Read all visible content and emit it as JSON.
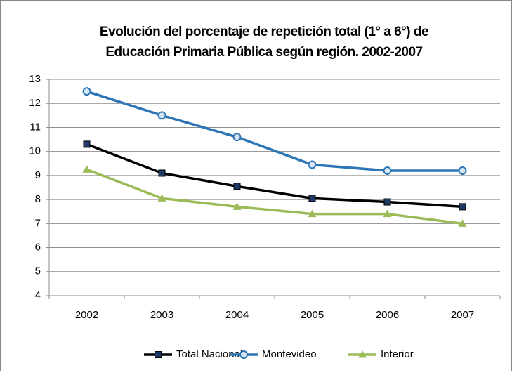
{
  "chart_data": {
    "type": "line",
    "title": [
      "Evolución del porcentaje de repetición total (1° a 6°) de",
      "Educación Primaria Pública según región. 2002-2007"
    ],
    "categories": [
      "2002",
      "2003",
      "2004",
      "2005",
      "2006",
      "2007"
    ],
    "series": [
      {
        "name": "Total Nacional",
        "color": "#000000",
        "marker": "square",
        "marker_color": "#1f3864",
        "values": [
          10.3,
          9.1,
          8.55,
          8.05,
          7.9,
          7.7
        ]
      },
      {
        "name": "Montevideo",
        "color": "#2e75b6",
        "marker": "circle",
        "marker_color": "#2e75b6",
        "values": [
          12.5,
          11.5,
          10.6,
          9.45,
          9.2,
          9.2
        ]
      },
      {
        "name": "Interior",
        "color": "#9bbb59",
        "marker": "triangle",
        "marker_color": "#9bbb59",
        "values": [
          9.25,
          8.05,
          7.7,
          7.4,
          7.4,
          7.0
        ]
      }
    ],
    "ylim": [
      4,
      13
    ],
    "yticks": [
      4,
      5,
      6,
      7,
      8,
      9,
      10,
      11,
      12,
      13
    ],
    "grid": true,
    "legend": "bottom"
  }
}
